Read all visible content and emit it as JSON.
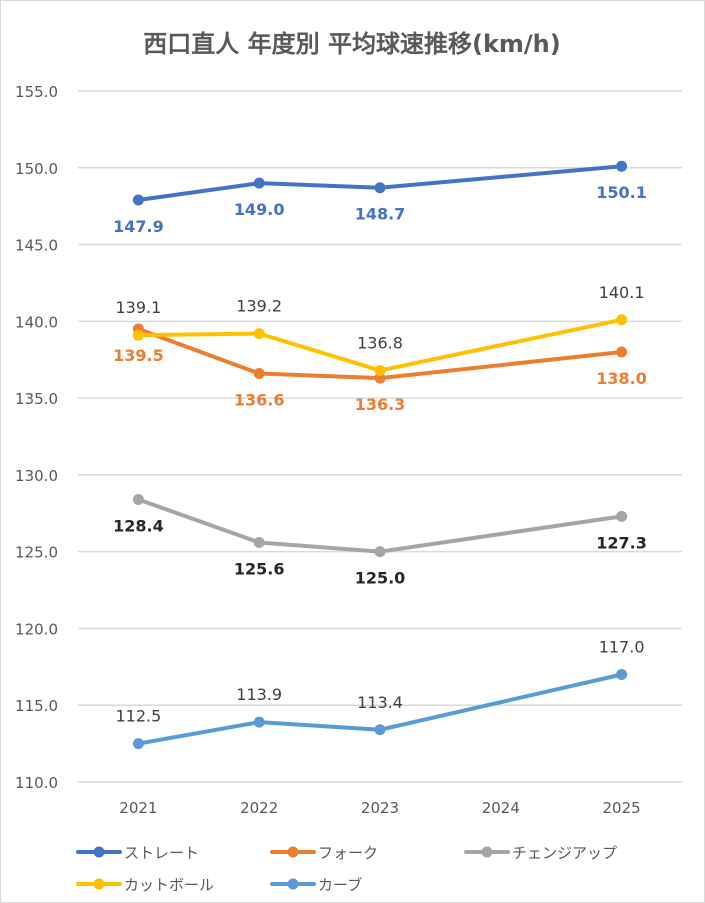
{
  "chart_data": {
    "type": "line",
    "title": "西口直人 年度別 平均球速推移(km/h)",
    "xlabel": "",
    "ylabel": "",
    "categories": [
      "2021",
      "2022",
      "2023",
      "2024",
      "2025"
    ],
    "ylim": [
      110.0,
      155.0
    ],
    "yticks": [
      "155.0",
      "150.0",
      "145.0",
      "140.0",
      "135.0",
      "130.0",
      "125.0",
      "120.0",
      "115.0",
      "110.0"
    ],
    "grid": true,
    "legend_position": "bottom",
    "series": [
      {
        "name": "ストレート",
        "color": "#4472c4",
        "label_color": "#4472c4",
        "label_pos": "below",
        "values": [
          147.9,
          149.0,
          148.7,
          null,
          150.1
        ],
        "labels": [
          "147.9",
          "149.0",
          "148.7",
          null,
          "150.1"
        ]
      },
      {
        "name": "フォーク",
        "color": "#ed7d31",
        "label_color": "#ed7d31",
        "label_pos": "below",
        "values": [
          139.5,
          136.6,
          136.3,
          null,
          138.0
        ],
        "labels": [
          "139.5",
          "136.6",
          "136.3",
          null,
          "138.0"
        ]
      },
      {
        "name": "チェンジアップ",
        "color": "#a5a5a5",
        "label_color": "#262626",
        "label_pos": "below",
        "values": [
          128.4,
          125.6,
          125.0,
          null,
          127.3
        ],
        "labels": [
          "128.4",
          "125.6",
          "125.0",
          null,
          "127.3"
        ]
      },
      {
        "name": "カットボール",
        "color": "#ffc000",
        "label_color": "#404040",
        "label_pos": "above",
        "values": [
          139.1,
          139.2,
          136.8,
          null,
          140.1
        ],
        "labels": [
          "139.1",
          "139.2",
          "136.8",
          null,
          "140.1"
        ]
      },
      {
        "name": "カーブ",
        "color": "#5b9bd5",
        "label_color": "#404040",
        "label_pos": "above",
        "values": [
          112.5,
          113.9,
          113.4,
          null,
          117.0
        ],
        "labels": [
          "112.5",
          "113.9",
          "113.4",
          null,
          "117.0"
        ]
      }
    ]
  }
}
